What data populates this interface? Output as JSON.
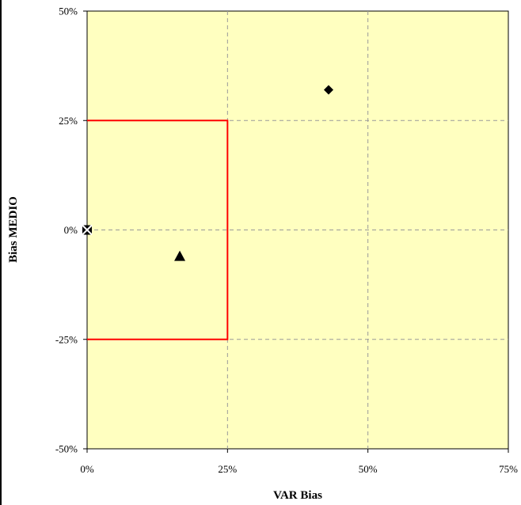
{
  "chart_data": {
    "type": "scatter",
    "title": "",
    "xlabel": "VAR Bias",
    "ylabel": "Bias MEDIO",
    "xlim": [
      0,
      75
    ],
    "ylim": [
      -50,
      50
    ],
    "x_ticks": [
      "0%",
      "25%",
      "50%",
      "75%"
    ],
    "y_ticks": [
      "50%",
      "25%",
      "0%",
      "-25%",
      "-50%"
    ],
    "x_tick_values": [
      0,
      25,
      50,
      75
    ],
    "y_tick_values": [
      50,
      25,
      0,
      -25,
      -50
    ],
    "grid": true,
    "plot_background": "#FFFFC0",
    "series": [
      {
        "marker": "diamond",
        "color": "#000000",
        "points": [
          [
            43,
            32
          ]
        ]
      },
      {
        "marker": "triangle",
        "color": "#000000",
        "points": [
          [
            16.5,
            -6
          ]
        ]
      },
      {
        "marker": "x-square",
        "color": "#000000",
        "points": [
          [
            0,
            0
          ]
        ]
      }
    ],
    "threshold_box": {
      "color": "#FF0000",
      "x_max": 25,
      "y_min": -25,
      "y_max": 25
    }
  }
}
